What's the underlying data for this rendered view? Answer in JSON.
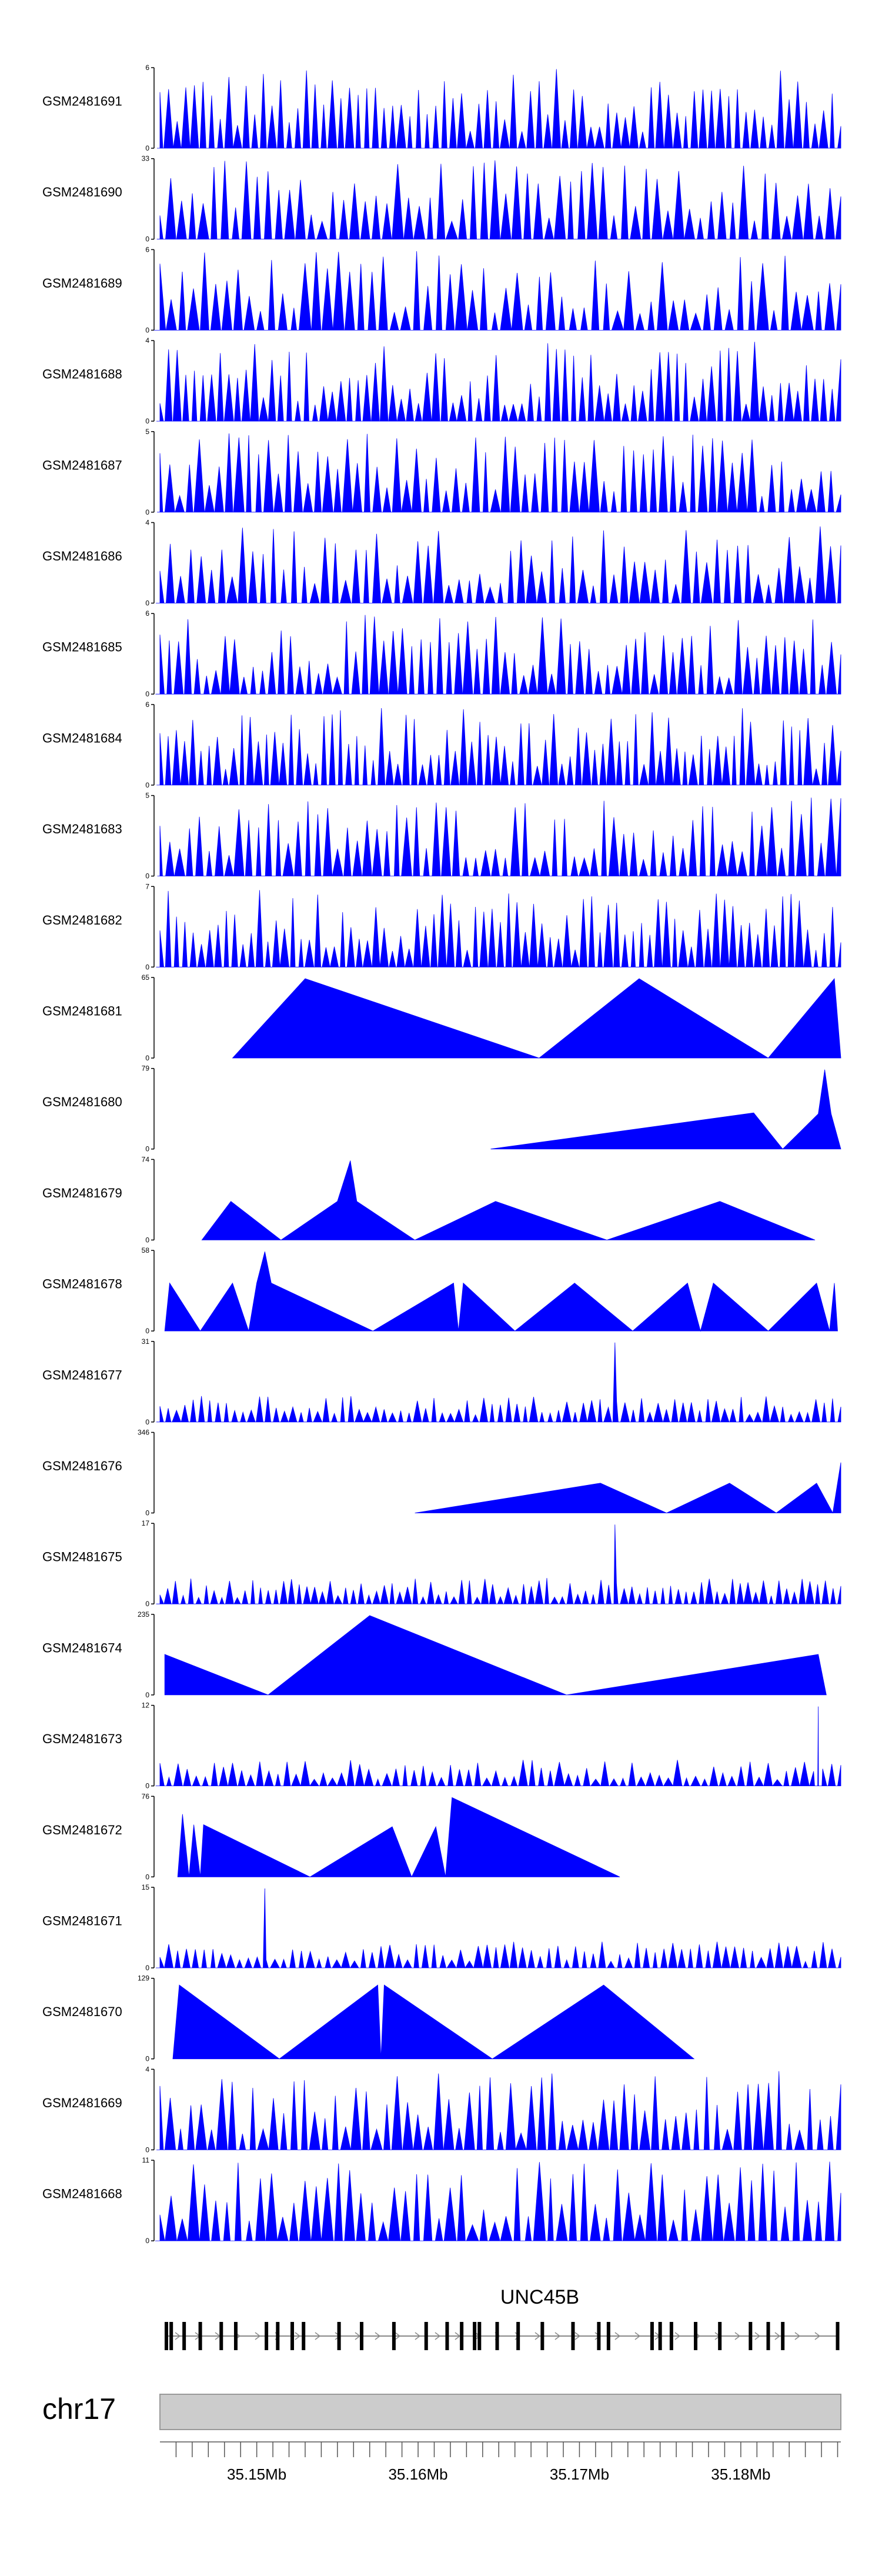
{
  "chart_data": {
    "type": "area",
    "fill_color": "#0000ff",
    "tracks": [
      {
        "name": "GSM2481691",
        "ymax": "6",
        "ymin": "0"
      },
      {
        "name": "GSM2481690",
        "ymax": "33",
        "ymin": "0"
      },
      {
        "name": "GSM2481689",
        "ymax": "6",
        "ymin": "0"
      },
      {
        "name": "GSM2481688",
        "ymax": "4",
        "ymin": "0"
      },
      {
        "name": "GSM2481687",
        "ymax": "5",
        "ymin": "0"
      },
      {
        "name": "GSM2481686",
        "ymax": "4",
        "ymin": "0"
      },
      {
        "name": "GSM2481685",
        "ymax": "6",
        "ymin": "0"
      },
      {
        "name": "GSM2481684",
        "ymax": "6",
        "ymin": "0"
      },
      {
        "name": "GSM2481683",
        "ymax": "5",
        "ymin": "0"
      },
      {
        "name": "GSM2481682",
        "ymax": "7",
        "ymin": "0"
      },
      {
        "name": "GSM2481681",
        "ymax": "65",
        "ymin": "0",
        "points": [
          [
            35.1485,
            0
          ],
          [
            35.153,
            65
          ],
          [
            35.1675,
            0
          ],
          [
            35.1737,
            65
          ],
          [
            35.1817,
            0
          ],
          [
            35.1858,
            65
          ],
          [
            35.1862,
            0
          ]
        ]
      },
      {
        "name": "GSM2481680",
        "ymax": "79",
        "ymin": "0",
        "points": [
          [
            35.1645,
            0
          ],
          [
            35.1808,
            36
          ],
          [
            35.1826,
            0
          ],
          [
            35.1848,
            35
          ],
          [
            35.1852,
            79
          ],
          [
            35.1856,
            35
          ],
          [
            35.1865,
            0
          ]
        ]
      },
      {
        "name": "GSM2481679",
        "ymax": "74",
        "ymin": "0",
        "points": [
          [
            35.1466,
            0
          ],
          [
            35.1484,
            36
          ],
          [
            35.1515,
            0
          ],
          [
            35.155,
            36
          ],
          [
            35.1558,
            74
          ],
          [
            35.1562,
            36
          ],
          [
            35.1598,
            0
          ],
          [
            35.1648,
            36
          ],
          [
            35.1717,
            0
          ],
          [
            35.1787,
            36
          ],
          [
            35.1846,
            0
          ]
        ]
      },
      {
        "name": "GSM2481678",
        "ymax": "58",
        "ymin": "0",
        "points": [
          [
            35.1443,
            0
          ],
          [
            35.1446,
            35
          ],
          [
            35.1465,
            0
          ],
          [
            35.1485,
            35
          ],
          [
            35.1495,
            0
          ],
          [
            35.15,
            35
          ],
          [
            35.1505,
            58
          ],
          [
            35.1509,
            35
          ],
          [
            35.1572,
            0
          ],
          [
            35.1622,
            35
          ],
          [
            35.1625,
            0
          ],
          [
            35.1628,
            35
          ],
          [
            35.166,
            0
          ],
          [
            35.1697,
            35
          ],
          [
            35.1733,
            0
          ],
          [
            35.1767,
            35
          ],
          [
            35.1775,
            0
          ],
          [
            35.1783,
            35
          ],
          [
            35.1817,
            0
          ],
          [
            35.1847,
            35
          ],
          [
            35.1855,
            0
          ],
          [
            35.1858,
            35
          ],
          [
            35.186,
            0
          ]
        ]
      },
      {
        "name": "GSM2481677",
        "ymax": "31",
        "ymin": "0",
        "peak": [
          35.1722,
          31
        ]
      },
      {
        "name": "GSM2481676",
        "ymax": "346",
        "ymin": "0",
        "points": [
          [
            35.1598,
            0
          ],
          [
            35.1713,
            130
          ],
          [
            35.1754,
            0
          ],
          [
            35.1793,
            130
          ],
          [
            35.1822,
            0
          ],
          [
            35.1847,
            130
          ],
          [
            35.1857,
            0
          ],
          [
            35.1862,
            220
          ]
        ]
      },
      {
        "name": "GSM2481675",
        "ymax": "17",
        "ymin": "0",
        "peak": [
          35.1722,
          17
        ]
      },
      {
        "name": "GSM2481674",
        "ymax": "235",
        "ymin": "0",
        "points": [
          [
            35.1443,
            0
          ],
          [
            35.1443,
            120
          ],
          [
            35.1507,
            0
          ],
          [
            35.157,
            235
          ],
          [
            35.1692,
            0
          ],
          [
            35.1848,
            120
          ],
          [
            35.1853,
            0
          ]
        ]
      },
      {
        "name": "GSM2481673",
        "ymax": "12",
        "ymin": "0",
        "peak": [
          35.1848,
          12
        ]
      },
      {
        "name": "GSM2481672",
        "ymax": "76",
        "ymin": "0",
        "points": [
          [
            35.1451,
            0
          ],
          [
            35.1454,
            60
          ],
          [
            35.1458,
            0
          ],
          [
            35.1461,
            50
          ],
          [
            35.1465,
            0
          ],
          [
            35.1467,
            50
          ],
          [
            35.1533,
            0
          ],
          [
            35.1584,
            48
          ],
          [
            35.1596,
            0
          ],
          [
            35.1611,
            48
          ],
          [
            35.1617,
            0
          ],
          [
            35.1621,
            76
          ],
          [
            35.1725,
            0
          ]
        ]
      },
      {
        "name": "GSM2481671",
        "ymax": "15",
        "ymin": "0",
        "peak": [
          35.1505,
          15
        ]
      },
      {
        "name": "GSM2481670",
        "ymax": "129",
        "ymin": "0",
        "points": [
          [
            35.1448,
            0
          ],
          [
            35.1452,
            120
          ],
          [
            35.1514,
            0
          ],
          [
            35.1575,
            120
          ],
          [
            35.1577,
            0
          ],
          [
            35.1579,
            120
          ],
          [
            35.1646,
            0
          ],
          [
            35.1715,
            120
          ],
          [
            35.1771,
            0
          ]
        ]
      },
      {
        "name": "GSM2481669",
        "ymax": "4",
        "ymin": "0"
      },
      {
        "name": "GSM2481668",
        "ymax": "11",
        "ymin": "0"
      }
    ],
    "gene": {
      "name": "UNC45B",
      "exons": [
        35.1444,
        35.1447,
        35.1455,
        35.1465,
        35.1478,
        35.1487,
        35.1506,
        35.1513,
        35.1522,
        35.1529,
        35.1551,
        35.1565,
        35.1585,
        35.1605,
        35.1618,
        35.1627,
        35.1635,
        35.1638,
        35.1649,
        35.1662,
        35.1677,
        35.1696,
        35.1712,
        35.1718,
        35.1745,
        35.175,
        35.1757,
        35.1772,
        35.1787,
        35.1806,
        35.1817,
        35.1826,
        35.186
      ],
      "strand": "+"
    },
    "chromosome": "chr17",
    "x_ticks": [
      "35.15Mb",
      "35.16Mb",
      "35.17Mb",
      "35.18Mb"
    ],
    "x_tick_values": [
      35.15,
      35.16,
      35.17,
      35.18
    ],
    "xlim": [
      35.144,
      35.1862
    ]
  }
}
